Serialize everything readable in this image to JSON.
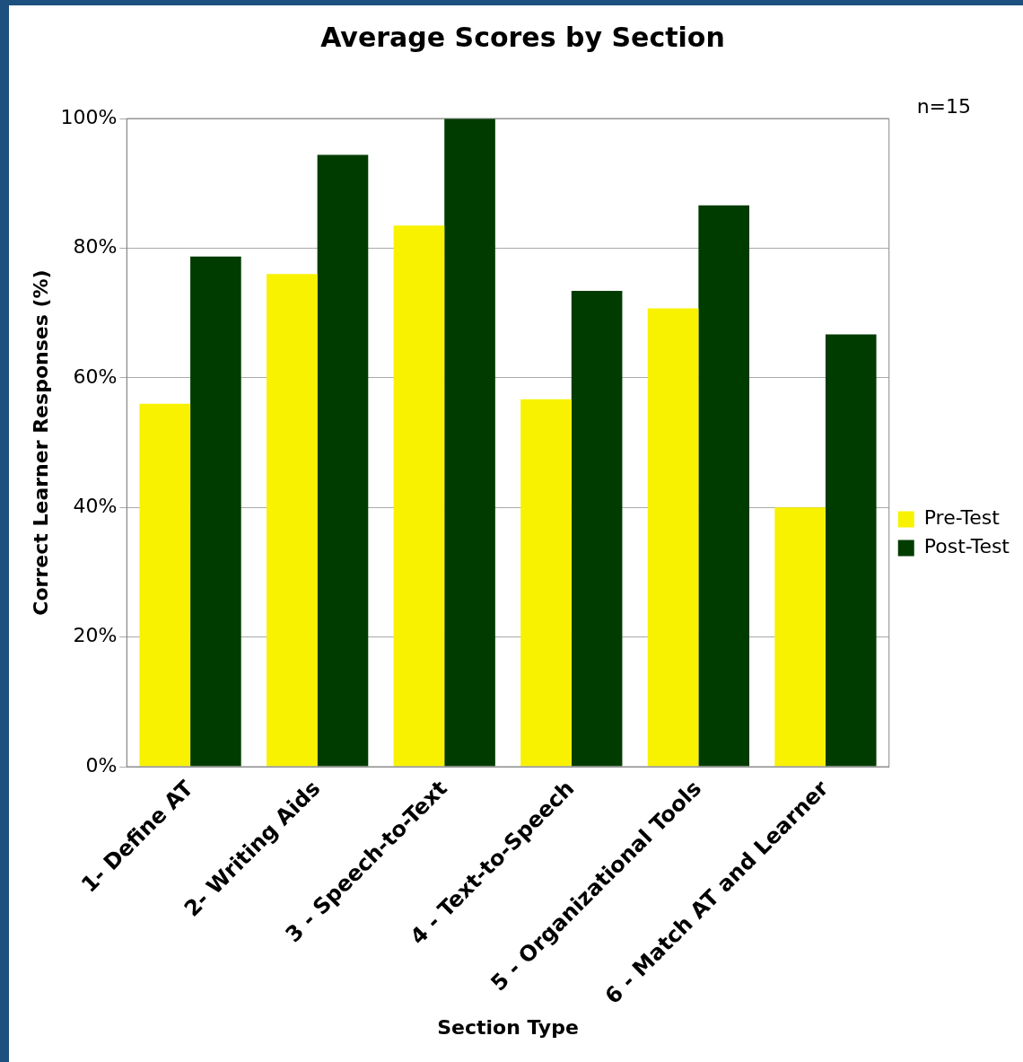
{
  "chart_data": {
    "type": "bar",
    "title": "Average Scores by Section",
    "xlabel": "Section Type",
    "ylabel": "Correct Learner Responses (%)",
    "categories": [
      "1- Define AT",
      "2- Writing Aids",
      "3 - Speech-to-Text",
      "4 - Text-to-Speech",
      "5 - Organizational Tools",
      "6 - Match AT and Learner"
    ],
    "series": [
      {
        "name": "Pre-Test",
        "color": "#f8f200",
        "values": [
          56,
          76,
          83.5,
          56.7,
          70.7,
          40
        ]
      },
      {
        "name": "Post-Test",
        "color": "#003c00",
        "values": [
          78.7,
          94.4,
          100,
          73.4,
          86.6,
          66.7
        ]
      }
    ],
    "ylim": [
      0,
      100
    ],
    "yticks": [
      {
        "value": 0,
        "label": "0%"
      },
      {
        "value": 20,
        "label": "20%"
      },
      {
        "value": 40,
        "label": "40%"
      },
      {
        "value": 60,
        "label": "60%"
      },
      {
        "value": 80,
        "label": "80%"
      },
      {
        "value": 100,
        "label": "100%"
      }
    ],
    "grid": "y",
    "legend": "right",
    "annotations": [
      "n=15"
    ]
  }
}
